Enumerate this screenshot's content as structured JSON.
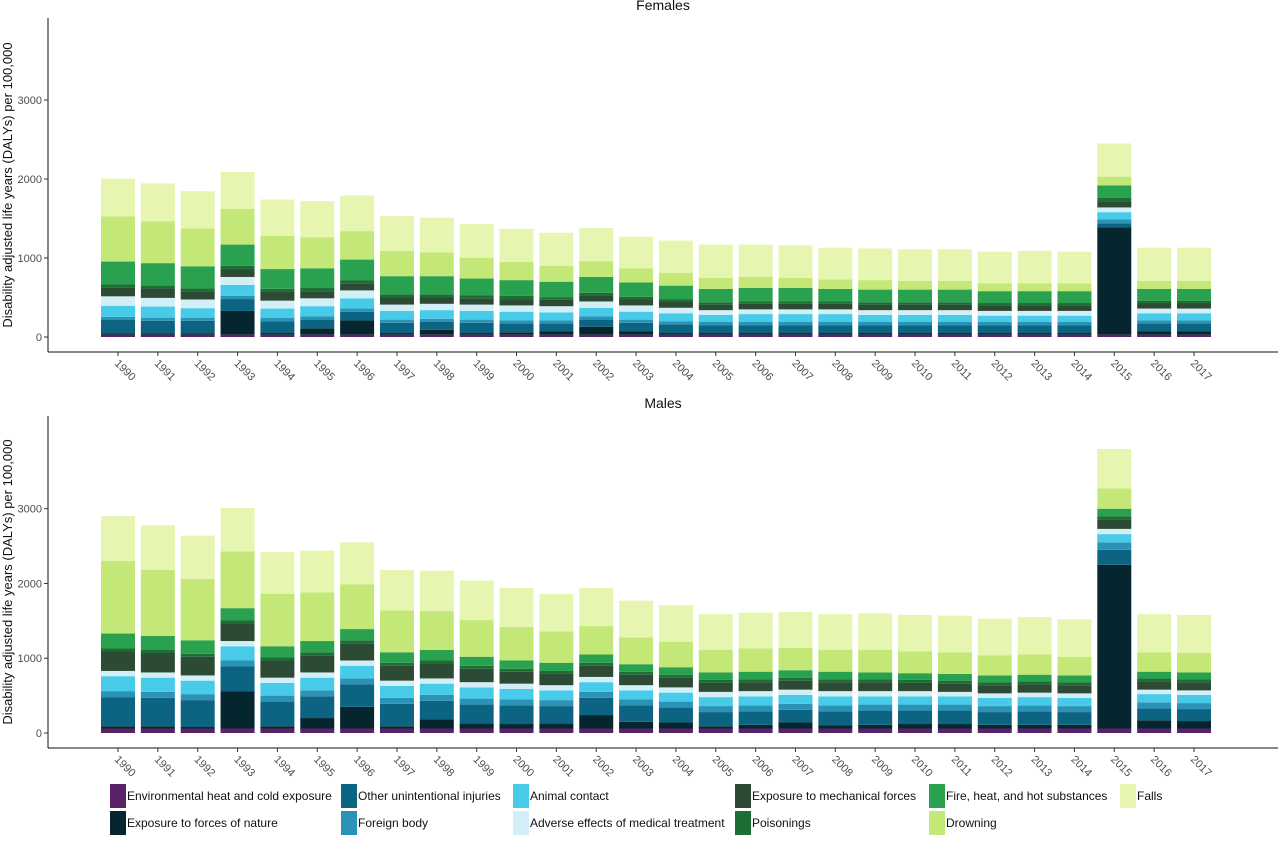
{
  "chart_data": {
    "type": "bar",
    "stacked": true,
    "ylabel": "Disability adjusted life years (DALYs) per 100,000",
    "categories": [
      "1990",
      "1991",
      "1992",
      "1993",
      "1994",
      "1995",
      "1996",
      "1997",
      "1998",
      "1999",
      "2000",
      "2001",
      "2002",
      "2003",
      "2004",
      "2005",
      "2006",
      "2007",
      "2008",
      "2009",
      "2010",
      "2011",
      "2012",
      "2013",
      "2014",
      "2015",
      "2016",
      "2017"
    ],
    "legend": [
      {
        "name": "Environmental heat and cold exposure",
        "color": "#5a2268"
      },
      {
        "name": "Other unintentional injuries",
        "color": "#0d6482"
      },
      {
        "name": "Animal contact",
        "color": "#47cbe8"
      },
      {
        "name": "Exposure to mechanical forces",
        "color": "#2d4a35"
      },
      {
        "name": "Fire, heat, and hot substances",
        "color": "#2aa14e"
      },
      {
        "name": "Falls",
        "color": "#e6f6b0"
      },
      {
        "name": "Exposure to forces of nature",
        "color": "#05262f"
      },
      {
        "name": "Foreign body",
        "color": "#2b93b5"
      },
      {
        "name": "Adverse effects of medical treatment",
        "color": "#d2eef6"
      },
      {
        "name": "Poisonings",
        "color": "#1b6f34"
      },
      {
        "name": "Drowning",
        "color": "#c4e878"
      }
    ],
    "stack_order": [
      "Environmental heat and cold exposure",
      "Exposure to forces of nature",
      "Other unintentional injuries",
      "Foreign body",
      "Animal contact",
      "Adverse effects of medical treatment",
      "Exposure to mechanical forces",
      "Poisonings",
      "Fire, heat, and hot substances",
      "Drowning",
      "Falls"
    ],
    "panels": [
      {
        "title": "Females",
        "ylim": [
          0,
          4000
        ],
        "yticks": [
          0,
          1000,
          2000,
          3000
        ],
        "series": [
          {
            "name": "Environmental heat and cold exposure",
            "values": [
              30,
              30,
              30,
              30,
              30,
              30,
              30,
              30,
              30,
              30,
              30,
              30,
              30,
              30,
              30,
              30,
              30,
              30,
              30,
              30,
              30,
              30,
              30,
              30,
              30,
              30,
              30,
              30
            ]
          },
          {
            "name": "Exposure to forces of nature",
            "values": [
              15,
              15,
              15,
              300,
              20,
              80,
              180,
              20,
              60,
              20,
              30,
              40,
              100,
              40,
              20,
              20,
              20,
              20,
              20,
              20,
              20,
              20,
              20,
              20,
              20,
              1360,
              40,
              40
            ]
          },
          {
            "name": "Other unintentional injuries",
            "values": [
              170,
              160,
              160,
              150,
              150,
              110,
              110,
              130,
              100,
              130,
              110,
              100,
              90,
              110,
              110,
              100,
              100,
              100,
              100,
              100,
              100,
              100,
              100,
              100,
              100,
              50,
              100,
              100
            ]
          },
          {
            "name": "Foreign body",
            "values": [
              40,
              40,
              40,
              40,
              40,
              40,
              40,
              40,
              40,
              40,
              40,
              40,
              40,
              40,
              40,
              40,
              40,
              40,
              40,
              40,
              40,
              40,
              40,
              40,
              40,
              50,
              40,
              40
            ]
          },
          {
            "name": "Animal contact",
            "values": [
              140,
              140,
              120,
              140,
              120,
              130,
              130,
              110,
              110,
              110,
              110,
              100,
              110,
              100,
              100,
              90,
              100,
              100,
              100,
              90,
              90,
              90,
              80,
              80,
              80,
              90,
              90,
              90
            ]
          },
          {
            "name": "Adverse effects of medical treatment",
            "values": [
              120,
              110,
              110,
              100,
              100,
              100,
              100,
              80,
              80,
              80,
              80,
              80,
              80,
              80,
              70,
              60,
              60,
              60,
              60,
              60,
              60,
              60,
              60,
              60,
              60,
              60,
              60,
              60
            ]
          },
          {
            "name": "Exposure to mechanical forces",
            "values": [
              110,
              120,
              100,
              100,
              110,
              90,
              90,
              90,
              80,
              80,
              80,
              80,
              80,
              80,
              80,
              70,
              70,
              70,
              70,
              70,
              70,
              70,
              70,
              70,
              70,
              80,
              70,
              70
            ]
          },
          {
            "name": "Poisonings",
            "values": [
              40,
              40,
              40,
              40,
              40,
              40,
              40,
              40,
              40,
              40,
              40,
              30,
              30,
              30,
              30,
              30,
              30,
              30,
              30,
              30,
              30,
              30,
              30,
              30,
              30,
              40,
              30,
              30
            ]
          },
          {
            "name": "Fire, heat, and hot substances",
            "values": [
              290,
              280,
              280,
              270,
              250,
              250,
              260,
              230,
              230,
              210,
              200,
              200,
              200,
              180,
              170,
              170,
              170,
              170,
              160,
              160,
              160,
              160,
              150,
              150,
              150,
              160,
              150,
              150
            ]
          },
          {
            "name": "Drowning",
            "values": [
              570,
              530,
              480,
              450,
              420,
              390,
              360,
              320,
              300,
              260,
              230,
              200,
              200,
              180,
              160,
              140,
              140,
              130,
              120,
              120,
              110,
              110,
              100,
              100,
              100,
              110,
              100,
              100
            ]
          },
          {
            "name": "Falls",
            "values": [
              480,
              480,
              470,
              470,
              460,
              460,
              450,
              440,
              440,
              430,
              420,
              420,
              420,
              400,
              410,
              420,
              410,
              410,
              400,
              400,
              400,
              400,
              400,
              410,
              400,
              420,
              420,
              420
            ]
          }
        ]
      },
      {
        "title": "Males",
        "ylim": [
          0,
          4200
        ],
        "yticks": [
          0,
          1000,
          2000,
          3000
        ],
        "series": [
          {
            "name": "Environmental heat and cold exposure",
            "values": [
              60,
              60,
              60,
              60,
              60,
              60,
              60,
              60,
              60,
              60,
              60,
              60,
              60,
              60,
              60,
              60,
              60,
              60,
              60,
              60,
              60,
              60,
              60,
              60,
              60,
              60,
              60,
              60
            ]
          },
          {
            "name": "Exposure to forces of nature",
            "values": [
              30,
              30,
              20,
              500,
              30,
              140,
              290,
              30,
              120,
              70,
              60,
              70,
              180,
              90,
              80,
              30,
              50,
              80,
              40,
              50,
              60,
              60,
              50,
              50,
              50,
              2190,
              110,
              100
            ]
          },
          {
            "name": "Other unintentional injuries",
            "values": [
              390,
              380,
              360,
              330,
              330,
              290,
              300,
              300,
              250,
              250,
              250,
              230,
              230,
              220,
              200,
              190,
              180,
              170,
              190,
              190,
              180,
              180,
              170,
              180,
              170,
              200,
              160,
              160
            ]
          },
          {
            "name": "Foreign body",
            "values": [
              80,
              80,
              80,
              80,
              80,
              80,
              80,
              80,
              80,
              80,
              80,
              80,
              80,
              80,
              80,
              80,
              80,
              80,
              80,
              80,
              80,
              80,
              80,
              80,
              80,
              100,
              80,
              80
            ]
          },
          {
            "name": "Animal contact",
            "values": [
              200,
              190,
              180,
              190,
              170,
              170,
              170,
              160,
              150,
              150,
              140,
              130,
              130,
              120,
              120,
              120,
              120,
              120,
              120,
              110,
              110,
              110,
              110,
              110,
              110,
              110,
              110,
              110
            ]
          },
          {
            "name": "Adverse effects of medical treatment",
            "values": [
              70,
              70,
              70,
              70,
              70,
              70,
              70,
              70,
              70,
              70,
              70,
              70,
              70,
              70,
              70,
              70,
              70,
              70,
              70,
              70,
              70,
              60,
              60,
              60,
              60,
              70,
              60,
              60
            ]
          },
          {
            "name": "Exposure to mechanical forces",
            "values": [
              260,
              260,
              250,
              240,
              230,
              230,
              230,
              200,
              200,
              180,
              160,
              150,
              150,
              140,
              130,
              120,
              120,
              120,
              120,
              120,
              110,
              110,
              110,
              110,
              110,
              130,
              110,
              110
            ]
          },
          {
            "name": "Poisonings",
            "values": [
              40,
              40,
              40,
              40,
              40,
              40,
              40,
              40,
              40,
              40,
              40,
              40,
              40,
              40,
              40,
              40,
              40,
              40,
              40,
              40,
              40,
              40,
              40,
              40,
              40,
              40,
              40,
              40
            ]
          },
          {
            "name": "Fire, heat, and hot substances",
            "values": [
              200,
              190,
              180,
              160,
              150,
              150,
              150,
              140,
              140,
              120,
              110,
              110,
              110,
              100,
              100,
              100,
              100,
              100,
              100,
              90,
              90,
              90,
              90,
              90,
              90,
              100,
              90,
              90
            ]
          },
          {
            "name": "Drowning",
            "values": [
              970,
              880,
              820,
              760,
              700,
              650,
              600,
              560,
              520,
              490,
              450,
              420,
              380,
              360,
              340,
              300,
              310,
              300,
              290,
              300,
              290,
              290,
              270,
              270,
              250,
              270,
              260,
              260
            ]
          },
          {
            "name": "Falls",
            "values": [
              600,
              600,
              580,
              580,
              560,
              560,
              560,
              540,
              540,
              530,
              520,
              500,
              510,
              490,
              490,
              480,
              480,
              480,
              480,
              490,
              490,
              490,
              490,
              500,
              500,
              530,
              510,
              510
            ]
          }
        ]
      }
    ]
  }
}
